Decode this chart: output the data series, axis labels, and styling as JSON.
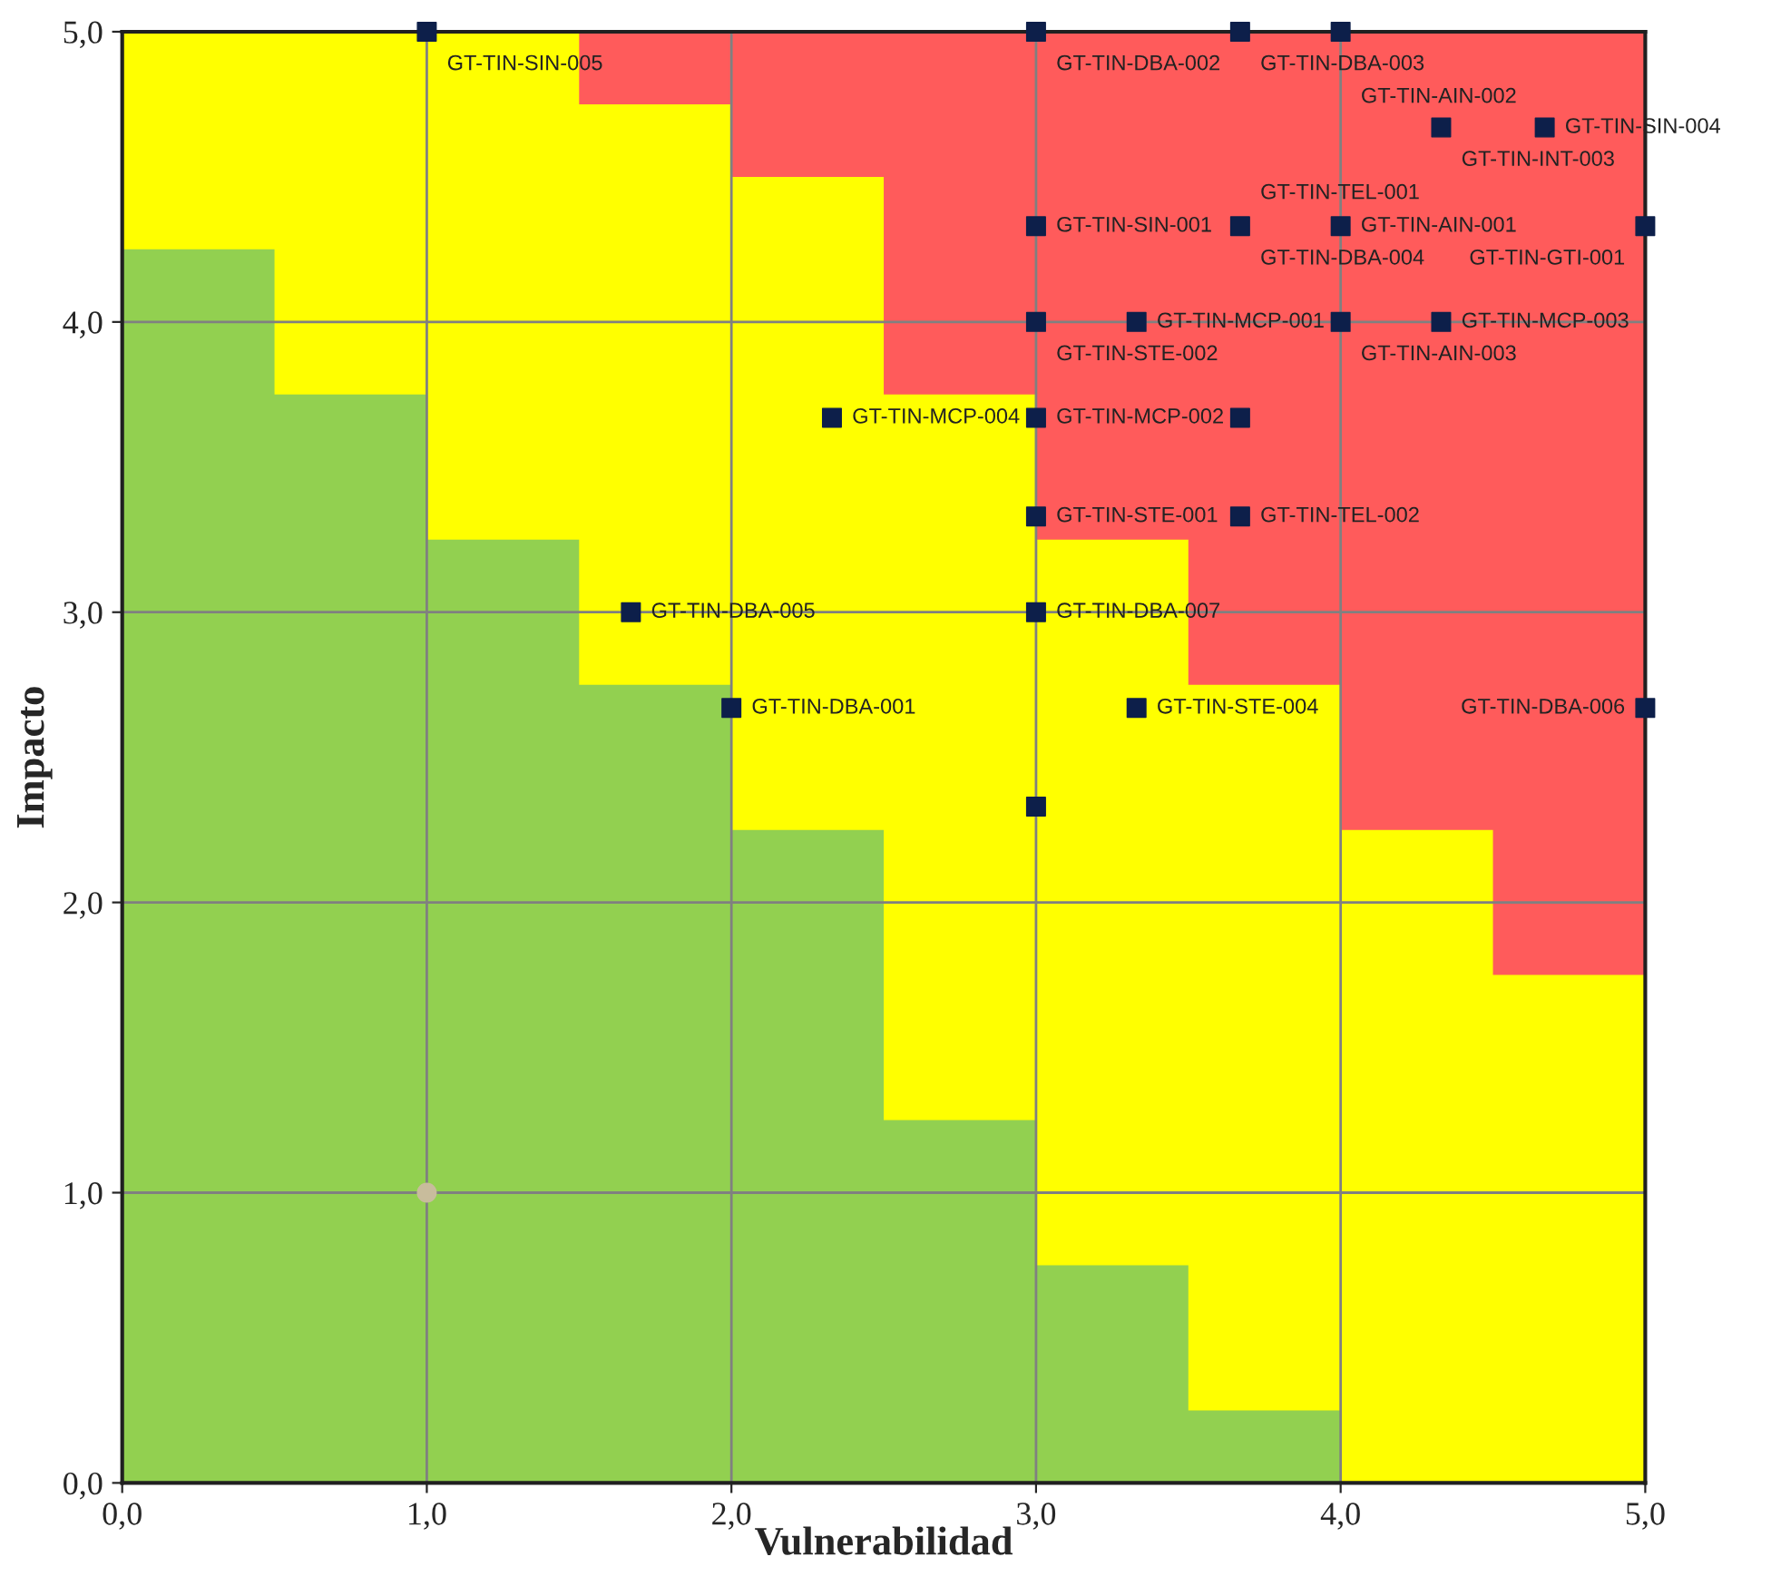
{
  "chart_data": {
    "type": "scatter",
    "xlabel": "Vulnerabilidad",
    "ylabel": "Impacto",
    "xlim": [
      0,
      5
    ],
    "ylim": [
      0,
      5
    ],
    "xticks": [
      {
        "value": 0,
        "label": "0,0"
      },
      {
        "value": 1,
        "label": "1,0"
      },
      {
        "value": 2,
        "label": "2,0"
      },
      {
        "value": 3,
        "label": "3,0"
      },
      {
        "value": 4,
        "label": "4,0"
      },
      {
        "value": 5,
        "label": "5,0"
      }
    ],
    "yticks": [
      {
        "value": 0,
        "label": "0,0"
      },
      {
        "value": 1,
        "label": "1,0"
      },
      {
        "value": 2,
        "label": "2,0"
      },
      {
        "value": 3,
        "label": "3,0"
      },
      {
        "value": 4,
        "label": "4,0"
      },
      {
        "value": 5,
        "label": "5,0"
      }
    ],
    "grid": true,
    "legend": false,
    "series": [
      {
        "type": "area",
        "color": "#ffff00",
        "x": [
          0,
          0.5,
          1,
          1.5,
          2,
          2.5,
          3,
          3.5,
          4,
          4.5,
          5
        ],
        "values": [
          5,
          5,
          5,
          4.75,
          4.5,
          3.75,
          3.25,
          2.75,
          2.25,
          1.75,
          1.75
        ]
      },
      {
        "type": "area",
        "color": "#92d050",
        "x": [
          0,
          0.5,
          1,
          1.5,
          2,
          2.5,
          3,
          3.5,
          4,
          4.5,
          5
        ],
        "values": [
          4.25,
          3.75,
          3.25,
          2.75,
          2.25,
          1.25,
          0.75,
          0.25,
          0,
          0,
          0
        ]
      },
      {
        "color": "#0d1f4a",
        "marker": "square",
        "x": [
          1,
          3,
          3.67,
          4,
          4.33,
          4.67,
          3,
          3.67,
          4,
          5,
          3,
          3.33,
          4,
          4.33,
          2.33,
          3,
          3.67,
          3,
          3.67,
          1.67,
          3,
          2,
          3.33,
          5,
          3
        ],
        "values": [
          5,
          5,
          5,
          5,
          4.67,
          4.67,
          4.33,
          4.33,
          4.33,
          4.33,
          4,
          4,
          4,
          4,
          3.67,
          3.67,
          3.67,
          3.33,
          3.33,
          3,
          3,
          2.67,
          2.67,
          2.67,
          2.33
        ]
      },
      {
        "color": "#c8bc9c",
        "marker": "circle",
        "x": [
          1
        ],
        "values": [
          1
        ]
      }
    ],
    "annotations": [
      {
        "text": "GT-TIN-SIN-005",
        "x": 1,
        "y": 5
      },
      {
        "text": "GT-TIN-DBA-002",
        "x": 3,
        "y": 5
      },
      {
        "text": "GT-TIN-DBA-003",
        "x": 3.67,
        "y": 5
      },
      {
        "text": "GT-TIN-AIN-002",
        "x": 4,
        "y": 5
      },
      {
        "text": "GT-TIN-INT-003",
        "x": 4.33,
        "y": 4.67
      },
      {
        "text": "GT-TIN-SIN-004",
        "x": 4.67,
        "y": 4.67
      },
      {
        "text": "GT-TIN-DBA-004",
        "x": 3.67,
        "y": 4.33
      },
      {
        "text": "GT-TIN-SIN-001",
        "x": 3,
        "y": 4.33
      },
      {
        "text": "GT-TIN-TEL-001",
        "x": 3.67,
        "y": 4.33
      },
      {
        "text": "GT-TIN-AIN-001",
        "x": 4,
        "y": 4.33
      },
      {
        "text": "GT-TIN-GTI-001",
        "x": 5,
        "y": 4.33
      },
      {
        "text": "GT-TIN-STE-002",
        "x": 3,
        "y": 4
      },
      {
        "text": "GT-TIN-MCP-001",
        "x": 3.33,
        "y": 4
      },
      {
        "text": "GT-TIN-AIN-003",
        "x": 4,
        "y": 4
      },
      {
        "text": "GT-TIN-MCP-003",
        "x": 4.33,
        "y": 4
      },
      {
        "text": "GT-TIN-MCP-004",
        "x": 2.33,
        "y": 3.67
      },
      {
        "text": "GT-TIN-MCP-002",
        "x": 3,
        "y": 3.67
      },
      {
        "text": "GT-TIN-STE-001",
        "x": 3,
        "y": 3.33
      },
      {
        "text": "GT-TIN-TEL-002",
        "x": 3.67,
        "y": 3.33
      },
      {
        "text": "GT-TIN-DBA-005",
        "x": 1.67,
        "y": 3
      },
      {
        "text": "GT-TIN-DBA-007",
        "x": 3,
        "y": 3
      },
      {
        "text": "GT-TIN-DBA-001",
        "x": 2,
        "y": 2.67
      },
      {
        "text": "GT-TIN-STE-004",
        "x": 3.33,
        "y": 2.67
      },
      {
        "text": "GT-TIN-DBA-006",
        "x": 5,
        "y": 2.67
      }
    ]
  }
}
